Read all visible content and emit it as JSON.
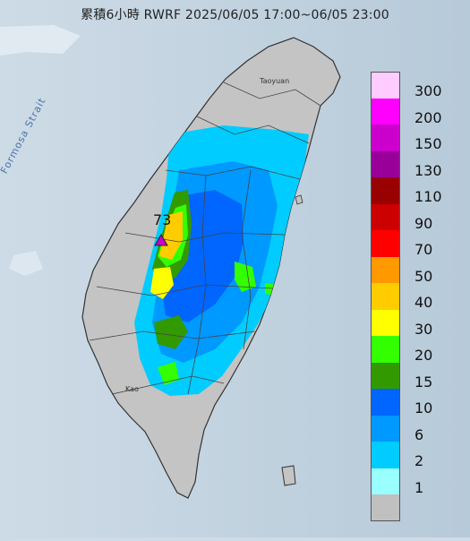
{
  "title": "累積6小時 RWRF 2025/06/05 17:00~06/05 23:00",
  "map_labels": {
    "strait": "Formosa Strait",
    "max_value": "73",
    "city_north": "Taoyuan",
    "city_south": "Kao"
  },
  "legend": [
    {
      "label": "300",
      "color": "#ffccff"
    },
    {
      "label": "200",
      "color": "#ff00ff"
    },
    {
      "label": "150",
      "color": "#cc00cc"
    },
    {
      "label": "130",
      "color": "#990099"
    },
    {
      "label": "110",
      "color": "#990000"
    },
    {
      "label": "90",
      "color": "#cc0000"
    },
    {
      "label": "70",
      "color": "#ff0000"
    },
    {
      "label": "50",
      "color": "#ff9900"
    },
    {
      "label": "40",
      "color": "#ffcc00"
    },
    {
      "label": "30",
      "color": "#ffff00"
    },
    {
      "label": "20",
      "color": "#33ff00"
    },
    {
      "label": "15",
      "color": "#339900"
    },
    {
      "label": "10",
      "color": "#0066ff"
    },
    {
      "label": "6",
      "color": "#0099ff"
    },
    {
      "label": "2",
      "color": "#00ccff"
    },
    {
      "label": "1",
      "color": "#99ffff"
    },
    {
      "label": "",
      "color": "#c0c0c0"
    }
  ],
  "icons": {
    "max_marker": "triangle-marker-icon"
  }
}
